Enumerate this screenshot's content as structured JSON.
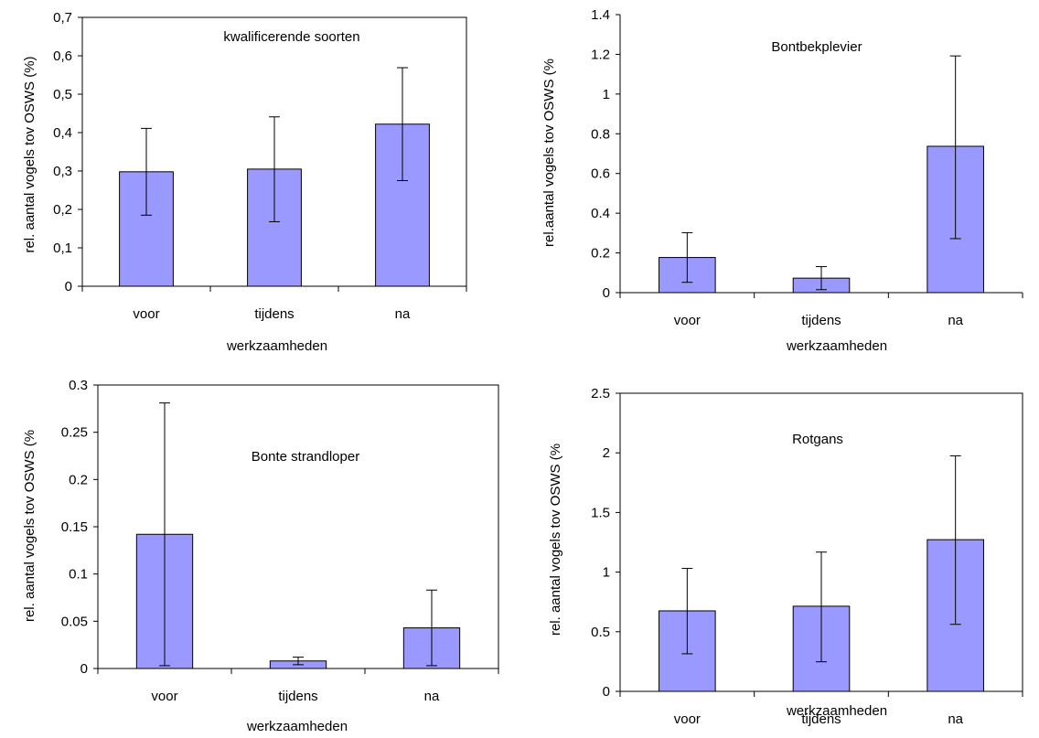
{
  "style": {
    "bar_fill": "#9999ff",
    "bar_stroke": "#000000",
    "plot_frame": "#000000",
    "background": "#ffffff"
  },
  "chart_data": [
    {
      "type": "bar",
      "title": "kwalificerende soorten",
      "xlabel": "werkzaamheden",
      "ylabel": "rel. aantal vogels tov OSWS (%)",
      "categories": [
        "voor",
        "tijdens",
        "na"
      ],
      "values": [
        0.298,
        0.305,
        0.422
      ],
      "error_low": [
        0.185,
        0.168,
        0.275
      ],
      "error_high": [
        0.411,
        0.441,
        0.569
      ],
      "ylim": [
        0,
        0.7
      ],
      "yticks": [
        0,
        0.1,
        0.2,
        0.3,
        0.4,
        0.5,
        0.6,
        0.7
      ],
      "ytick_labels": [
        "0",
        "0,1",
        "0,2",
        "0,3",
        "0,4",
        "0,5",
        "0,6",
        "0,7"
      ],
      "grid": false,
      "plot_frame": true
    },
    {
      "type": "bar",
      "title": "Bontbekplevier",
      "xlabel": "werkzaamheden",
      "ylabel": "rel.aantal vogels tov OSWS (%",
      "categories": [
        "voor",
        "tijdens",
        "na"
      ],
      "values": [
        0.177,
        0.073,
        0.737
      ],
      "error_low": [
        0.052,
        0.015,
        0.272
      ],
      "error_high": [
        0.302,
        0.131,
        1.192
      ],
      "ylim": [
        0,
        1.4
      ],
      "yticks": [
        0,
        0.2,
        0.4,
        0.6,
        0.8,
        1,
        1.2,
        1.4
      ],
      "ytick_labels": [
        "0",
        "0.2",
        "0.4",
        "0.6",
        "0.8",
        "1",
        "1.2",
        "1.4"
      ],
      "grid": false,
      "plot_frame": false
    },
    {
      "type": "bar",
      "title": "Bonte strandloper",
      "xlabel": "werkzaamheden",
      "ylabel": "rel. aantal vogels tov OSWS (%",
      "categories": [
        "voor",
        "tijdens",
        "na"
      ],
      "values": [
        0.142,
        0.008,
        0.043
      ],
      "error_low": [
        0.003,
        0.004,
        0.003
      ],
      "error_high": [
        0.281,
        0.012,
        0.083
      ],
      "ylim": [
        0,
        0.3
      ],
      "yticks": [
        0,
        0.05,
        0.1,
        0.15,
        0.2,
        0.25,
        0.3
      ],
      "ytick_labels": [
        "0",
        "0.05",
        "0.1",
        "0.15",
        "0.2",
        "0.25",
        "0.3"
      ],
      "grid": false,
      "plot_frame": true
    },
    {
      "type": "bar",
      "title": "Rotgans",
      "xlabel": "werkzaamheden",
      "ylabel": "rel. aantal vogels tov OSWS (%",
      "categories": [
        "voor",
        "tijdens",
        "na"
      ],
      "values": [
        0.675,
        0.714,
        1.272
      ],
      "error_low": [
        0.315,
        0.248,
        0.562
      ],
      "error_high": [
        1.031,
        1.168,
        1.975
      ],
      "ylim": [
        0,
        2.5
      ],
      "yticks": [
        0,
        0.5,
        1,
        1.5,
        2,
        2.5
      ],
      "ytick_labels": [
        "0",
        "0.5",
        "1",
        "1.5",
        "2",
        "2.5"
      ],
      "grid": false,
      "plot_frame": true
    }
  ]
}
